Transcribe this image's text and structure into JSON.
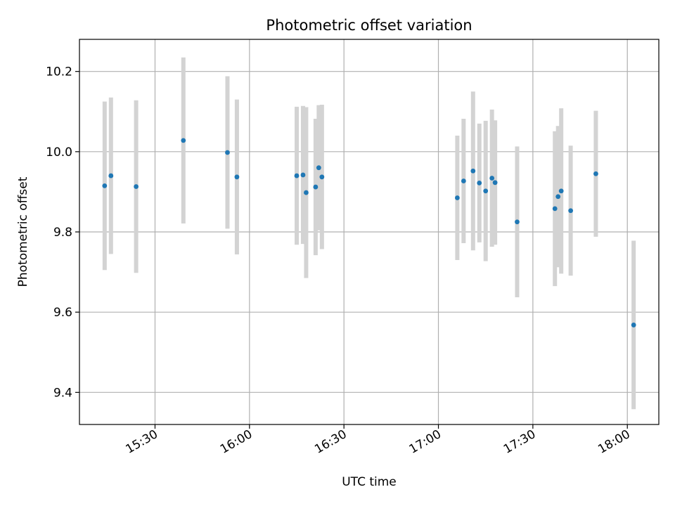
{
  "chart_data": {
    "type": "scatter",
    "title": "Photometric offset variation",
    "xlabel": "UTC time",
    "ylabel": "Photometric offset",
    "x_is_time": true,
    "xlim": [
      "15:06",
      "18:10"
    ],
    "ylim": [
      9.32,
      10.28
    ],
    "x_ticks": [
      "15:30",
      "16:00",
      "16:30",
      "17:00",
      "17:30",
      "18:00"
    ],
    "y_ticks": [
      9.4,
      9.6,
      9.8,
      10.0,
      10.2
    ],
    "y_tick_labels": [
      "9.4",
      "9.6",
      "9.8",
      "10.0",
      "10.2"
    ],
    "grid": true,
    "legend": "none",
    "colors": {
      "point": "#1f77b4",
      "errorbar": "#d3d3d3",
      "grid": "#b0b0b0"
    },
    "points": [
      {
        "x": "15:14",
        "y": 9.915,
        "yerr": 0.21
      },
      {
        "x": "15:16",
        "y": 9.94,
        "yerr": 0.195
      },
      {
        "x": "15:24",
        "y": 9.913,
        "yerr": 0.215
      },
      {
        "x": "15:39",
        "y": 10.028,
        "yerr": 0.207
      },
      {
        "x": "15:53",
        "y": 9.998,
        "yerr": 0.19
      },
      {
        "x": "15:56",
        "y": 9.937,
        "yerr": 0.193
      },
      {
        "x": "16:15",
        "y": 9.94,
        "yerr": 0.172
      },
      {
        "x": "16:17",
        "y": 9.942,
        "yerr": 0.172
      },
      {
        "x": "16:18",
        "y": 9.898,
        "yerr": 0.213
      },
      {
        "x": "16:21",
        "y": 9.912,
        "yerr": 0.17
      },
      {
        "x": "16:22",
        "y": 9.96,
        "yerr": 0.156
      },
      {
        "x": "16:23",
        "y": 9.937,
        "yerr": 0.18
      },
      {
        "x": "17:06",
        "y": 9.885,
        "yerr": 0.155
      },
      {
        "x": "17:08",
        "y": 9.927,
        "yerr": 0.155
      },
      {
        "x": "17:11",
        "y": 9.952,
        "yerr": 0.198
      },
      {
        "x": "17:13",
        "y": 9.922,
        "yerr": 0.148
      },
      {
        "x": "17:15",
        "y": 9.902,
        "yerr": 0.175
      },
      {
        "x": "17:17",
        "y": 9.934,
        "yerr": 0.171
      },
      {
        "x": "17:18",
        "y": 9.923,
        "yerr": 0.155
      },
      {
        "x": "17:25",
        "y": 9.825,
        "yerr": 0.188
      },
      {
        "x": "17:37",
        "y": 9.858,
        "yerr": 0.193
      },
      {
        "x": "17:38",
        "y": 9.888,
        "yerr": 0.176
      },
      {
        "x": "17:39",
        "y": 9.902,
        "yerr": 0.206
      },
      {
        "x": "17:42",
        "y": 9.853,
        "yerr": 0.162
      },
      {
        "x": "17:50",
        "y": 9.945,
        "yerr": 0.157
      },
      {
        "x": "18:02",
        "y": 9.568,
        "yerr": 0.21
      }
    ]
  }
}
